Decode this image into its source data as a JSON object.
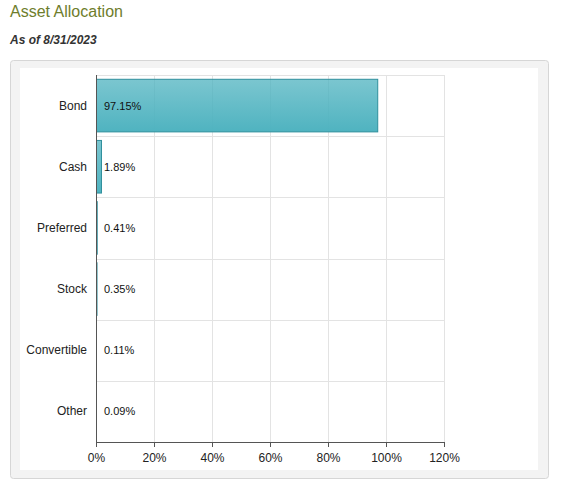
{
  "chart_data": {
    "type": "bar",
    "orientation": "horizontal",
    "title": "Asset Allocation",
    "subtitle": "As of 8/31/2023",
    "categories": [
      "Bond",
      "Cash",
      "Preferred",
      "Stock",
      "Convertible",
      "Other"
    ],
    "values": [
      97.15,
      1.89,
      0.41,
      0.35,
      0.11,
      0.09
    ],
    "value_labels": [
      "97.15%",
      "1.89%",
      "0.41%",
      "0.35%",
      "0.11%",
      "0.09%"
    ],
    "data_labels": true,
    "color": "#4fb3c0",
    "xlim": [
      0,
      120
    ],
    "xticks": [
      {
        "value": 0,
        "label": "0%"
      },
      {
        "value": 20,
        "label": "20%"
      },
      {
        "value": 40,
        "label": "40%"
      },
      {
        "value": 60,
        "label": "60%"
      },
      {
        "value": 80,
        "label": "80%"
      },
      {
        "value": 100,
        "label": "100%"
      },
      {
        "value": 120,
        "label": "120%"
      }
    ],
    "grid": true
  }
}
